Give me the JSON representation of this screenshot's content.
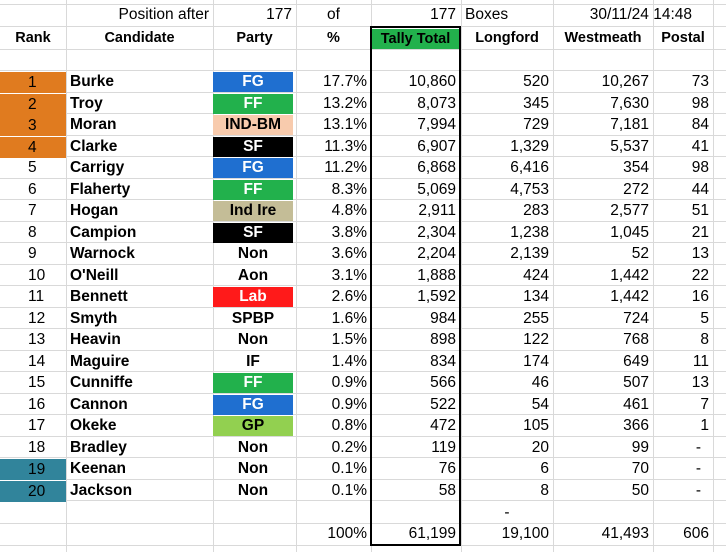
{
  "top": {
    "position_after": "Position after",
    "count": "177",
    "of": "of",
    "total": "177",
    "boxes": "Boxes",
    "datetime": "30/11/24 14:48"
  },
  "headers": {
    "rank": "Rank",
    "candidate": "Candidate",
    "party": "Party",
    "pct": "%",
    "tally": "Tally Total",
    "longford": "Longford",
    "westmeath": "Westmeath",
    "postal": "Postal"
  },
  "colors": {
    "elected": "#e07b1f",
    "eliminated": "#31849b",
    "tally_header": "#22b14c"
  },
  "rows": [
    {
      "rank": "1",
      "name": "Burke",
      "party": "FG",
      "pct": "17.7%",
      "tally": "10,860",
      "longford": "520",
      "westmeath": "10,267",
      "postal": "73",
      "party_bg": "#1f6fd0",
      "party_fg": "#ffffff",
      "rank_bg": "#e07b1f"
    },
    {
      "rank": "2",
      "name": "Troy",
      "party": "FF",
      "pct": "13.2%",
      "tally": "8,073",
      "longford": "345",
      "westmeath": "7,630",
      "postal": "98",
      "party_bg": "#22b14c",
      "party_fg": "#ffffff",
      "rank_bg": "#e07b1f"
    },
    {
      "rank": "3",
      "name": "Moran",
      "party": "IND-BM",
      "pct": "13.1%",
      "tally": "7,994",
      "longford": "729",
      "westmeath": "7,181",
      "postal": "84",
      "party_bg": "#f8cbad",
      "party_fg": "#000000",
      "rank_bg": "#e07b1f"
    },
    {
      "rank": "4",
      "name": "Clarke",
      "party": "SF",
      "pct": "11.3%",
      "tally": "6,907",
      "longford": "1,329",
      "westmeath": "5,537",
      "postal": "41",
      "party_bg": "#000000",
      "party_fg": "#ffffff",
      "rank_bg": "#e07b1f"
    },
    {
      "rank": "5",
      "name": "Carrigy",
      "party": "FG",
      "pct": "11.2%",
      "tally": "6,868",
      "longford": "6,416",
      "westmeath": "354",
      "postal": "98",
      "party_bg": "#1f6fd0",
      "party_fg": "#ffffff",
      "rank_bg": ""
    },
    {
      "rank": "6",
      "name": "Flaherty",
      "party": "FF",
      "pct": "8.3%",
      "tally": "5,069",
      "longford": "4,753",
      "westmeath": "272",
      "postal": "44",
      "party_bg": "#22b14c",
      "party_fg": "#ffffff",
      "rank_bg": ""
    },
    {
      "rank": "7",
      "name": "Hogan",
      "party": "Ind Ire",
      "pct": "4.8%",
      "tally": "2,911",
      "longford": "283",
      "westmeath": "2,577",
      "postal": "51",
      "party_bg": "#c4bd97",
      "party_fg": "#000000",
      "rank_bg": ""
    },
    {
      "rank": "8",
      "name": "Campion",
      "party": "SF",
      "pct": "3.8%",
      "tally": "2,304",
      "longford": "1,238",
      "westmeath": "1,045",
      "postal": "21",
      "party_bg": "#000000",
      "party_fg": "#ffffff",
      "rank_bg": ""
    },
    {
      "rank": "9",
      "name": "Warnock",
      "party": "Non",
      "pct": "3.6%",
      "tally": "2,204",
      "longford": "2,139",
      "westmeath": "52",
      "postal": "13",
      "party_bg": "",
      "party_fg": "#000000",
      "rank_bg": ""
    },
    {
      "rank": "10",
      "name": "O'Neill",
      "party": "Aon",
      "pct": "3.1%",
      "tally": "1,888",
      "longford": "424",
      "westmeath": "1,442",
      "postal": "22",
      "party_bg": "",
      "party_fg": "#000000",
      "rank_bg": ""
    },
    {
      "rank": "11",
      "name": "Bennett",
      "party": "Lab",
      "pct": "2.6%",
      "tally": "1,592",
      "longford": "134",
      "westmeath": "1,442",
      "postal": "16",
      "party_bg": "#ff1a1a",
      "party_fg": "#ffffff",
      "rank_bg": ""
    },
    {
      "rank": "12",
      "name": "Smyth",
      "party": "SPBP",
      "pct": "1.6%",
      "tally": "984",
      "longford": "255",
      "westmeath": "724",
      "postal": "5",
      "party_bg": "",
      "party_fg": "#000000",
      "rank_bg": ""
    },
    {
      "rank": "13",
      "name": "Heavin",
      "party": "Non",
      "pct": "1.5%",
      "tally": "898",
      "longford": "122",
      "westmeath": "768",
      "postal": "8",
      "party_bg": "",
      "party_fg": "#000000",
      "rank_bg": ""
    },
    {
      "rank": "14",
      "name": "Maguire",
      "party": "IF",
      "pct": "1.4%",
      "tally": "834",
      "longford": "174",
      "westmeath": "649",
      "postal": "11",
      "party_bg": "",
      "party_fg": "#000000",
      "rank_bg": ""
    },
    {
      "rank": "15",
      "name": "Cunniffe",
      "party": "FF",
      "pct": "0.9%",
      "tally": "566",
      "longford": "46",
      "westmeath": "507",
      "postal": "13",
      "party_bg": "#22b14c",
      "party_fg": "#ffffff",
      "rank_bg": ""
    },
    {
      "rank": "16",
      "name": "Cannon",
      "party": "FG",
      "pct": "0.9%",
      "tally": "522",
      "longford": "54",
      "westmeath": "461",
      "postal": "7",
      "party_bg": "#1f6fd0",
      "party_fg": "#ffffff",
      "rank_bg": ""
    },
    {
      "rank": "17",
      "name": "Okeke",
      "party": "GP",
      "pct": "0.8%",
      "tally": "472",
      "longford": "105",
      "westmeath": "366",
      "postal": "1",
      "party_bg": "#92d050",
      "party_fg": "#000000",
      "rank_bg": ""
    },
    {
      "rank": "18",
      "name": "Bradley",
      "party": "Non",
      "pct": "0.2%",
      "tally": "119",
      "longford": "20",
      "westmeath": "99",
      "postal": "-",
      "party_bg": "",
      "party_fg": "#000000",
      "rank_bg": ""
    },
    {
      "rank": "19",
      "name": "Keenan",
      "party": "Non",
      "pct": "0.1%",
      "tally": "76",
      "longford": "6",
      "westmeath": "70",
      "postal": "-",
      "party_bg": "",
      "party_fg": "#000000",
      "rank_bg": "#31849b"
    },
    {
      "rank": "20",
      "name": "Jackson",
      "party": "Non",
      "pct": "0.1%",
      "tally": "58",
      "longford": "8",
      "westmeath": "50",
      "postal": "-",
      "party_bg": "",
      "party_fg": "#000000",
      "rank_bg": "#31849b"
    }
  ],
  "extra_dash": "-",
  "totals": {
    "pct": "100%",
    "tally": "61,199",
    "longford": "19,100",
    "westmeath": "41,493",
    "postal": "606"
  }
}
